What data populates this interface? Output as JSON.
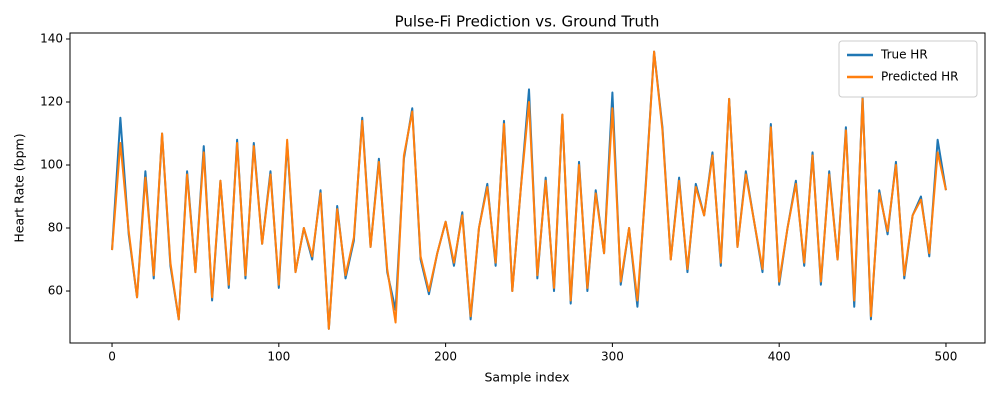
{
  "chart_data": {
    "type": "line",
    "title": "Pulse-Fi Prediction vs. Ground Truth",
    "x_label": "Sample index",
    "y_label": "Heart Rate (bpm)",
    "x": [
      0,
      5,
      10,
      15,
      20,
      25,
      30,
      35,
      40,
      45,
      50,
      55,
      60,
      65,
      70,
      75,
      80,
      85,
      90,
      95,
      100,
      105,
      110,
      115,
      120,
      125,
      130,
      135,
      140,
      145,
      150,
      155,
      160,
      165,
      170,
      175,
      180,
      185,
      190,
      195,
      200,
      205,
      210,
      215,
      220,
      225,
      230,
      235,
      240,
      245,
      250,
      255,
      260,
      265,
      270,
      275,
      280,
      285,
      290,
      295,
      300,
      305,
      310,
      315,
      320,
      325,
      330,
      335,
      340,
      345,
      350,
      355,
      360,
      365,
      370,
      375,
      380,
      385,
      390,
      395,
      400,
      405,
      410,
      415,
      420,
      425,
      430,
      435,
      440,
      445,
      450,
      455,
      460,
      465,
      470,
      475,
      480,
      485,
      490,
      495,
      500
    ],
    "series": [
      {
        "name": "True HR",
        "color": "#1f77b4",
        "values": [
          73,
          115,
          78,
          58,
          98,
          64,
          110,
          68,
          51,
          98,
          66,
          106,
          57,
          95,
          61,
          108,
          64,
          107,
          75,
          98,
          61,
          107,
          66,
          80,
          70,
          92,
          48,
          87,
          64,
          76,
          115,
          74,
          102,
          66,
          54,
          102,
          118,
          70,
          59,
          72,
          82,
          68,
          85,
          51,
          80,
          94,
          68,
          114,
          60,
          92,
          124,
          64,
          96,
          60,
          116,
          56,
          101,
          60,
          92,
          72,
          123,
          62,
          80,
          55,
          94,
          136,
          112,
          70,
          96,
          66,
          94,
          84,
          104,
          68,
          121,
          74,
          98,
          82,
          66,
          113,
          62,
          80,
          95,
          68,
          104,
          62,
          98,
          70,
          112,
          55,
          122,
          51,
          92,
          78,
          101,
          64,
          84,
          90,
          71,
          108,
          92
        ]
      },
      {
        "name": "Predicted HR",
        "color": "#ff7f0e",
        "values": [
          73,
          107,
          79,
          58,
          96,
          65,
          110,
          69,
          51,
          97,
          66,
          104,
          58,
          95,
          62,
          107,
          65,
          106,
          75,
          97,
          62,
          108,
          66,
          80,
          71,
          91,
          48,
          86,
          65,
          77,
          114,
          74,
          101,
          67,
          50,
          103,
          117,
          71,
          60,
          72,
          82,
          69,
          84,
          52,
          80,
          93,
          69,
          113,
          60,
          92,
          120,
          65,
          95,
          61,
          116,
          57,
          100,
          61,
          91,
          72,
          118,
          63,
          80,
          57,
          93,
          136,
          111,
          70,
          95,
          67,
          93,
          84,
          103,
          69,
          121,
          74,
          97,
          82,
          67,
          112,
          63,
          80,
          94,
          69,
          103,
          63,
          97,
          70,
          111,
          57,
          121,
          52,
          91,
          79,
          100,
          65,
          84,
          89,
          72,
          104,
          92
        ]
      }
    ],
    "xlim": [
      -25.2,
      523.4
    ],
    "ylim": [
      43.5,
      141.9
    ],
    "xticks": [
      0,
      100,
      200,
      300,
      400,
      500
    ],
    "yticks": [
      60,
      80,
      100,
      120,
      140
    ],
    "legend": "upper right"
  }
}
